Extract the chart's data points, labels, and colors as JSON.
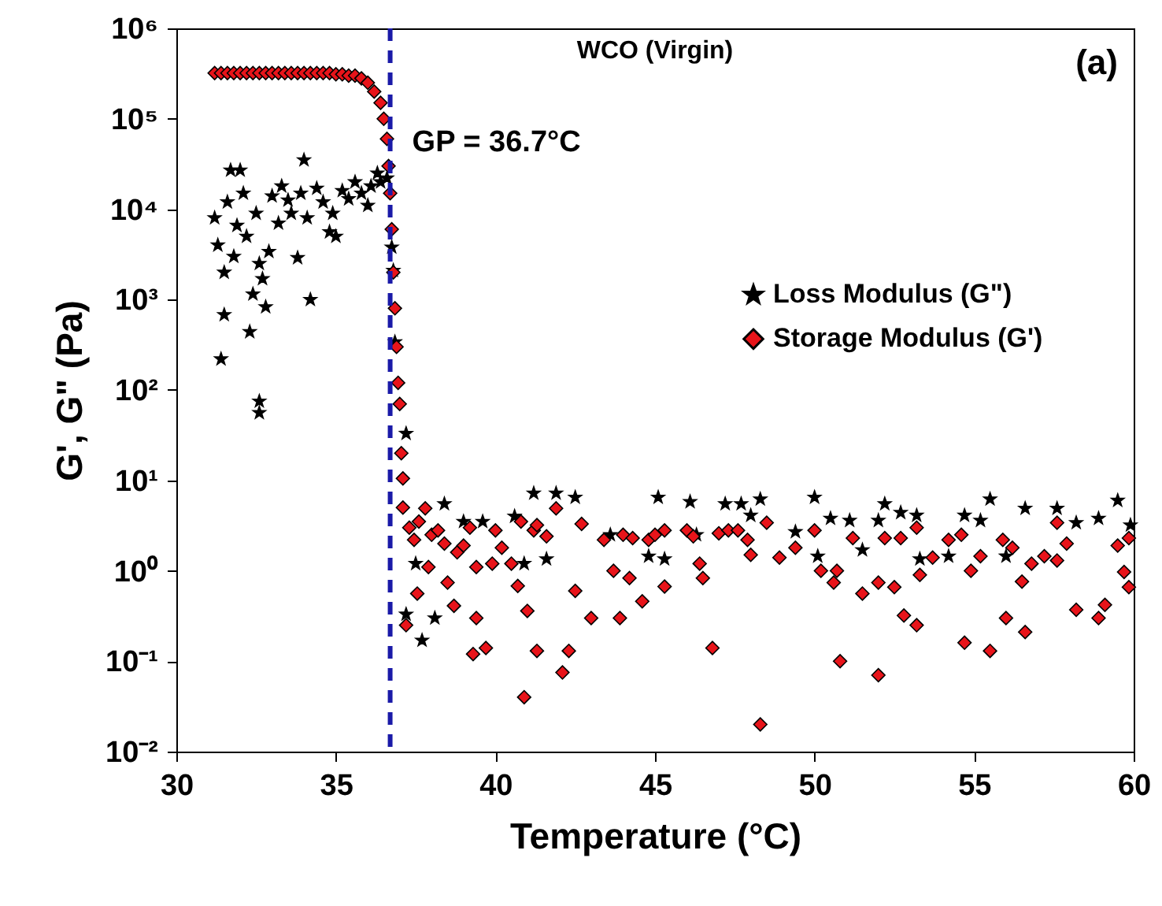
{
  "chart_data": {
    "type": "scatter",
    "xlabel": "Temperature (°C)",
    "ylabel": "G', G\" (Pa)",
    "annotations": [
      "WCO (Virgin)",
      "(a)"
    ],
    "log": "y",
    "xlim": [
      30,
      60
    ],
    "xticks": [
      30,
      35,
      40,
      45,
      50,
      55,
      60
    ],
    "ylim": [
      0.01,
      1000000
    ],
    "yticks": [
      {
        "value": 0.01,
        "label": "10⁻²"
      },
      {
        "value": 0.1,
        "label": "10⁻¹"
      },
      {
        "value": 1,
        "label": "10⁰"
      },
      {
        "value": 10,
        "label": "10¹"
      },
      {
        "value": 100,
        "label": "10²"
      },
      {
        "value": 1000,
        "label": "10³"
      },
      {
        "value": 10000,
        "label": "10⁴"
      },
      {
        "value": 100000,
        "label": "10⁵"
      },
      {
        "value": 1000000,
        "label": "10⁶"
      }
    ],
    "grid": false,
    "legend": "right",
    "ref_lines": [
      {
        "axis": "x",
        "value": 36.7,
        "label": "GP = 36.7°C",
        "color": "#1a1aa8",
        "line_style": "dashed"
      }
    ],
    "series": [
      {
        "name": "Loss Modulus (G\")",
        "color": "#000000",
        "marker": "star",
        "x": [
          31.2,
          31.3,
          31.4,
          31.5,
          31.5,
          31.6,
          31.7,
          31.8,
          31.9,
          32.0,
          32.1,
          32.2,
          32.3,
          32.4,
          32.5,
          32.6,
          32.6,
          32.6,
          32.7,
          32.8,
          32.9,
          33.0,
          33.2,
          33.3,
          33.5,
          33.6,
          33.8,
          33.9,
          34.0,
          34.1,
          34.2,
          34.4,
          34.6,
          34.8,
          34.9,
          35.0,
          35.2,
          35.4,
          35.6,
          35.8,
          36.0,
          36.1,
          36.3,
          36.4,
          36.6,
          36.75,
          36.8,
          36.85,
          37.2,
          37.2,
          37.5,
          37.7,
          38.1,
          38.4,
          39.0,
          39.6,
          40.6,
          40.9,
          41.2,
          41.6,
          41.9,
          42.5,
          43.6,
          44.8,
          45.1,
          45.3,
          46.1,
          46.3,
          47.2,
          47.7,
          48.0,
          48.3,
          49.4,
          50.0,
          50.1,
          50.5,
          51.1,
          51.5,
          52.0,
          52.2,
          52.7,
          53.2,
          53.3,
          54.2,
          54.7,
          55.2,
          55.5,
          56.0,
          56.6,
          57.6,
          58.2,
          58.9,
          59.5,
          59.9
        ],
        "values": [
          8000,
          4000,
          220,
          680,
          2000,
          12000,
          27000,
          3000,
          6600,
          27000,
          15000,
          5000,
          440,
          1150,
          9000,
          56,
          75,
          2500,
          1700,
          830,
          3400,
          14000,
          7000,
          18000,
          12600,
          9000,
          2900,
          15000,
          35000,
          8000,
          1000,
          17000,
          12000,
          5600,
          9000,
          5000,
          16000,
          13000,
          20000,
          15000,
          11000,
          18000,
          25000,
          20000,
          22000,
          3800,
          2100,
          340,
          33,
          0.33,
          1.2,
          0.17,
          0.3,
          5.5,
          3.5,
          3.5,
          4,
          1.2,
          7.2,
          1.35,
          7.2,
          6.5,
          2.5,
          1.45,
          6.5,
          1.35,
          5.8,
          2.5,
          5.5,
          5.5,
          4.1,
          6.2,
          2.7,
          6.5,
          1.45,
          3.8,
          3.6,
          1.7,
          3.6,
          5.5,
          4.4,
          4.1,
          1.35,
          1.45,
          4.1,
          3.6,
          6.2,
          1.45,
          4.9,
          4.9,
          3.4,
          3.8,
          6,
          3.2
        ]
      },
      {
        "name": "Storage Modulus (G')",
        "color": "#e8141a",
        "marker": "diamond",
        "x": [
          31.2,
          31.4,
          31.6,
          31.8,
          32.0,
          32.2,
          32.4,
          32.6,
          32.8,
          33.0,
          33.2,
          33.4,
          33.6,
          33.8,
          34.0,
          34.2,
          34.4,
          34.6,
          34.8,
          35.0,
          35.2,
          35.4,
          35.6,
          35.8,
          36.0,
          36.2,
          36.4,
          36.5,
          36.6,
          36.65,
          36.7,
          36.75,
          36.8,
          36.85,
          36.9,
          36.95,
          37.0,
          37.05,
          37.1,
          37.1,
          37.2,
          37.3,
          37.45,
          37.55,
          37.6,
          37.8,
          37.9,
          38.0,
          38.2,
          38.4,
          38.5,
          38.7,
          38.8,
          39.0,
          39.2,
          39.3,
          39.4,
          39.4,
          39.7,
          39.9,
          40.0,
          40.2,
          40.5,
          40.7,
          40.8,
          40.9,
          41.0,
          41.2,
          41.3,
          41.3,
          41.6,
          41.9,
          42.1,
          42.3,
          42.5,
          42.7,
          43.0,
          43.4,
          43.7,
          43.9,
          44.0,
          44.2,
          44.3,
          44.6,
          44.8,
          45.0,
          45.3,
          45.3,
          46.0,
          46.2,
          46.4,
          46.5,
          46.8,
          47.0,
          47.3,
          47.6,
          47.9,
          48.0,
          48.3,
          48.5,
          48.9,
          49.4,
          50.0,
          50.2,
          50.6,
          50.7,
          50.8,
          51.2,
          51.5,
          52.0,
          52.0,
          52.2,
          52.5,
          52.7,
          52.8,
          53.2,
          53.2,
          53.3,
          53.7,
          54.2,
          54.6,
          54.7,
          54.9,
          55.2,
          55.5,
          55.9,
          56.0,
          56.2,
          56.5,
          56.6,
          56.8,
          57.2,
          57.6,
          57.6,
          57.9,
          58.2,
          58.9,
          59.1,
          59.5,
          59.7,
          59.85,
          59.85
        ],
        "values": [
          320000,
          320000,
          320000,
          320000,
          320000,
          320000,
          320000,
          320000,
          320000,
          320000,
          320000,
          320000,
          320000,
          320000,
          320000,
          320000,
          320000,
          320000,
          320000,
          310000,
          310000,
          300000,
          300000,
          280000,
          250000,
          200000,
          150000,
          100000,
          60000,
          30000,
          15000,
          6000,
          2000,
          800,
          300,
          120,
          70,
          20,
          10.5,
          5,
          0.25,
          3,
          2.2,
          0.56,
          3.5,
          4.9,
          1.1,
          2.5,
          2.8,
          2,
          0.74,
          0.41,
          1.6,
          1.9,
          3,
          0.12,
          1.1,
          0.3,
          0.14,
          1.2,
          2.8,
          1.8,
          1.2,
          0.68,
          3.5,
          0.04,
          0.36,
          2.8,
          0.13,
          3.2,
          2.4,
          4.9,
          0.075,
          0.13,
          0.6,
          3.3,
          0.3,
          2.2,
          1,
          0.3,
          2.5,
          0.83,
          2.3,
          0.46,
          2.2,
          2.5,
          2.8,
          0.67,
          2.8,
          2.4,
          1.2,
          0.83,
          0.14,
          2.6,
          2.8,
          2.8,
          2.2,
          1.5,
          0.02,
          3.4,
          1.4,
          1.8,
          2.8,
          1,
          0.74,
          1,
          0.1,
          2.3,
          0.56,
          0.07,
          0.74,
          2.3,
          0.66,
          2.3,
          0.32,
          0.25,
          3,
          0.9,
          1.4,
          2.2,
          2.5,
          0.16,
          1,
          1.45,
          0.13,
          2.2,
          0.3,
          1.8,
          0.76,
          0.21,
          1.2,
          1.45,
          1.3,
          3.4,
          2,
          0.37,
          0.3,
          0.42,
          1.9,
          0.97,
          2.3,
          0.66
        ]
      }
    ]
  }
}
